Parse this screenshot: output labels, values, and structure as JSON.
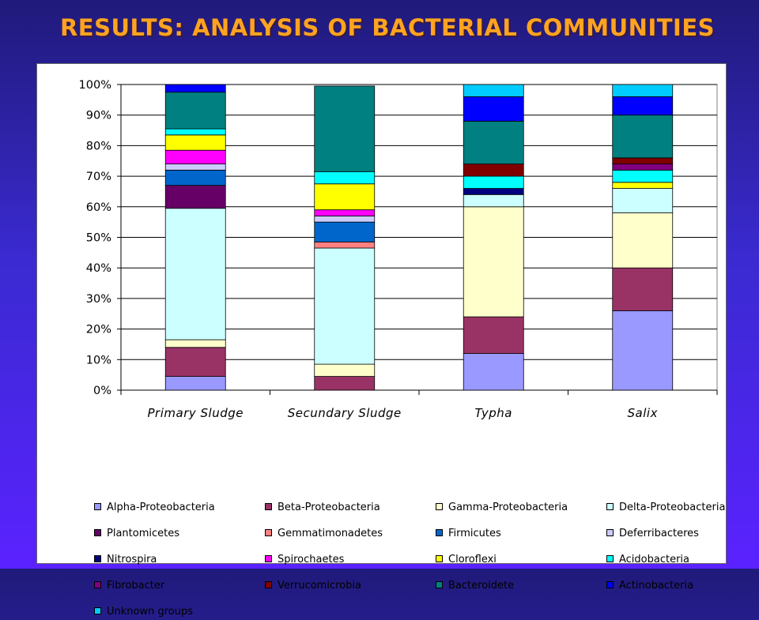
{
  "slide": {
    "title": "RESULTS: ANALYSIS OF BACTERIAL COMMUNITIES"
  },
  "chart_data": {
    "type": "bar",
    "stacked": true,
    "percent": true,
    "categories": [
      "Primary Sludge",
      "Secundary Sludge",
      "Typha",
      "Salix"
    ],
    "ylim": [
      0,
      100
    ],
    "yticks": [
      "0%",
      "10%",
      "20%",
      "30%",
      "40%",
      "50%",
      "60%",
      "70%",
      "80%",
      "90%",
      "100%"
    ],
    "grid": true,
    "legend_position": "bottom",
    "series": [
      {
        "name": "Alpha-Proteobacteria",
        "color": "#9999ff",
        "values": [
          4.5,
          0,
          12,
          26
        ]
      },
      {
        "name": "Beta-Proteobacteria",
        "color": "#993366",
        "values": [
          9.5,
          4.5,
          12,
          14
        ]
      },
      {
        "name": "Gamma-Proteobacteria",
        "color": "#ffffcc",
        "values": [
          2.5,
          4,
          36,
          18
        ]
      },
      {
        "name": "Delta-Proteobacteria",
        "color": "#ccffff",
        "values": [
          43,
          38,
          4,
          8
        ]
      },
      {
        "name": "Plantomicetes",
        "color": "#660066",
        "values": [
          7.5,
          0,
          0,
          0
        ]
      },
      {
        "name": "Gemmatimonadetes",
        "color": "#ff8080",
        "values": [
          0,
          2,
          0,
          0
        ]
      },
      {
        "name": "Firmicutes",
        "color": "#0066cc",
        "values": [
          5,
          6.5,
          0,
          0
        ]
      },
      {
        "name": "Deferribacteres",
        "color": "#ccccff",
        "values": [
          2,
          2,
          0,
          0
        ]
      },
      {
        "name": "Nitrospira",
        "color": "#000080",
        "values": [
          0,
          0,
          2,
          0
        ]
      },
      {
        "name": "Spirochaetes",
        "color": "#ff00ff",
        "values": [
          4.5,
          2,
          0,
          0
        ]
      },
      {
        "name": "Cloroflexi",
        "color": "#ffff00",
        "values": [
          5,
          8.5,
          0,
          2
        ]
      },
      {
        "name": "Acidobacteria",
        "color": "#00ffff",
        "values": [
          2,
          4,
          4,
          4
        ]
      },
      {
        "name": "Fibrobacter",
        "color": "#800080",
        "values": [
          0,
          0,
          0,
          2
        ]
      },
      {
        "name": "Verrucomicrobia",
        "color": "#800000",
        "values": [
          0,
          0,
          4,
          2
        ]
      },
      {
        "name": "Bacteroidete",
        "color": "#008080",
        "values": [
          12,
          28,
          14,
          14
        ]
      },
      {
        "name": "Actinobacteria",
        "color": "#0000ff",
        "values": [
          2.5,
          0,
          8,
          6
        ]
      },
      {
        "name": "Unknown groups",
        "color": "#00ccff",
        "values": [
          0,
          0,
          4,
          4
        ]
      }
    ]
  }
}
